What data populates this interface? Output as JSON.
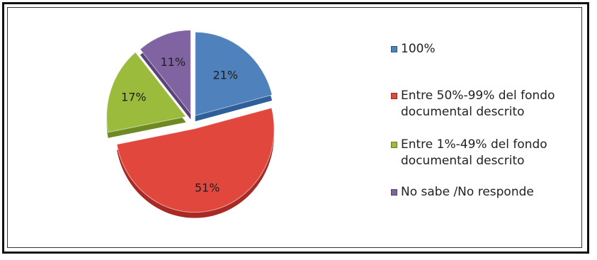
{
  "chart_data": {
    "type": "pie",
    "style": "3d-exploded",
    "title": "",
    "slices": [
      {
        "label": "100%",
        "value": 21,
        "display": "21%",
        "color": "#4f81bd",
        "shade": "#2e5f99"
      },
      {
        "label": "Entre 50%-99% del fondo\ndocumental descrito",
        "value": 51,
        "display": "51%",
        "color": "#e2473e",
        "shade": "#a82a24"
      },
      {
        "label": "Entre 1%-49% del fondo\ndocumental descrito",
        "value": 17,
        "display": "17%",
        "color": "#9bbb3c",
        "shade": "#6f8a22"
      },
      {
        "label": "No sabe /No responde",
        "value": 11,
        "display": "11%",
        "color": "#8064a2",
        "shade": "#5a4378"
      }
    ],
    "legend_position": "right"
  }
}
